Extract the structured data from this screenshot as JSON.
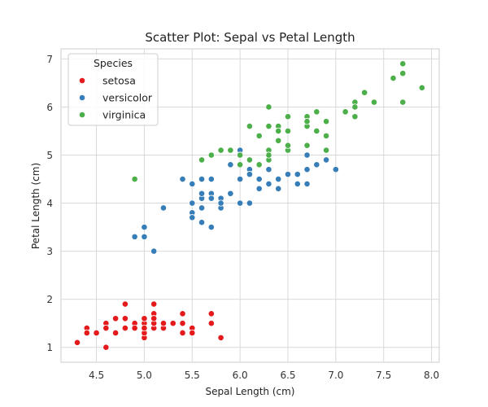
{
  "chart_data": {
    "type": "scatter",
    "title": "Scatter Plot: Sepal vs Petal Length",
    "xlabel": "Sepal Length (cm)",
    "ylabel": "Petal Length (cm)",
    "xlim": [
      4.13,
      8.08
    ],
    "ylim": [
      0.69,
      7.21
    ],
    "xticks": [
      4.5,
      5.0,
      5.5,
      6.0,
      6.5,
      7.0,
      7.5,
      8.0
    ],
    "xtick_labels": [
      "4.5",
      "5.0",
      "5.5",
      "6.0",
      "6.5",
      "7.0",
      "7.5",
      "8.0"
    ],
    "yticks": [
      1,
      2,
      3,
      4,
      5,
      6,
      7
    ],
    "ytick_labels": [
      "1",
      "2",
      "3",
      "4",
      "5",
      "6",
      "7"
    ],
    "grid": true,
    "legend_title": "Species",
    "legend_position": "top-left",
    "series": [
      {
        "name": "setosa",
        "color": "#e41a1c",
        "points": [
          [
            5.1,
            1.4
          ],
          [
            4.9,
            1.4
          ],
          [
            4.7,
            1.3
          ],
          [
            4.6,
            1.5
          ],
          [
            5.0,
            1.4
          ],
          [
            5.4,
            1.7
          ],
          [
            4.6,
            1.4
          ],
          [
            5.0,
            1.5
          ],
          [
            4.4,
            1.4
          ],
          [
            4.9,
            1.5
          ],
          [
            5.4,
            1.5
          ],
          [
            4.8,
            1.6
          ],
          [
            4.8,
            1.4
          ],
          [
            4.3,
            1.1
          ],
          [
            5.8,
            1.2
          ],
          [
            5.7,
            1.5
          ],
          [
            5.4,
            1.3
          ],
          [
            5.1,
            1.4
          ],
          [
            5.7,
            1.7
          ],
          [
            5.1,
            1.5
          ],
          [
            5.4,
            1.7
          ],
          [
            5.1,
            1.5
          ],
          [
            4.6,
            1.0
          ],
          [
            5.1,
            1.7
          ],
          [
            4.8,
            1.9
          ],
          [
            5.0,
            1.6
          ],
          [
            5.0,
            1.6
          ],
          [
            5.2,
            1.5
          ],
          [
            5.2,
            1.4
          ],
          [
            4.7,
            1.6
          ],
          [
            4.8,
            1.6
          ],
          [
            5.4,
            1.5
          ],
          [
            5.2,
            1.5
          ],
          [
            5.5,
            1.4
          ],
          [
            4.9,
            1.5
          ],
          [
            5.0,
            1.2
          ],
          [
            5.5,
            1.3
          ],
          [
            4.9,
            1.4
          ],
          [
            4.4,
            1.3
          ],
          [
            5.1,
            1.5
          ],
          [
            5.0,
            1.3
          ],
          [
            4.5,
            1.3
          ],
          [
            4.4,
            1.3
          ],
          [
            5.0,
            1.6
          ],
          [
            5.1,
            1.9
          ],
          [
            4.8,
            1.4
          ],
          [
            5.1,
            1.6
          ],
          [
            4.6,
            1.4
          ],
          [
            5.3,
            1.5
          ],
          [
            5.0,
            1.4
          ]
        ]
      },
      {
        "name": "versicolor",
        "color": "#377eb8",
        "points": [
          [
            7.0,
            4.7
          ],
          [
            6.4,
            4.5
          ],
          [
            6.9,
            4.9
          ],
          [
            5.5,
            4.0
          ],
          [
            6.5,
            4.6
          ],
          [
            5.7,
            4.5
          ],
          [
            6.3,
            4.7
          ],
          [
            4.9,
            3.3
          ],
          [
            6.6,
            4.6
          ],
          [
            5.2,
            3.9
          ],
          [
            5.0,
            3.5
          ],
          [
            5.9,
            4.2
          ],
          [
            6.0,
            4.0
          ],
          [
            6.1,
            4.7
          ],
          [
            5.6,
            3.6
          ],
          [
            6.7,
            4.4
          ],
          [
            5.6,
            4.5
          ],
          [
            5.8,
            4.1
          ],
          [
            6.2,
            4.5
          ],
          [
            5.6,
            3.9
          ],
          [
            5.9,
            4.8
          ],
          [
            6.1,
            4.0
          ],
          [
            6.3,
            4.9
          ],
          [
            6.1,
            4.7
          ],
          [
            6.4,
            4.3
          ],
          [
            6.6,
            4.4
          ],
          [
            6.8,
            4.8
          ],
          [
            6.7,
            5.0
          ],
          [
            6.0,
            4.5
          ],
          [
            5.7,
            3.5
          ],
          [
            5.5,
            3.8
          ],
          [
            5.5,
            3.7
          ],
          [
            5.8,
            3.9
          ],
          [
            6.0,
            5.1
          ],
          [
            5.4,
            4.5
          ],
          [
            6.0,
            4.5
          ],
          [
            6.7,
            4.7
          ],
          [
            6.3,
            4.4
          ],
          [
            5.6,
            4.1
          ],
          [
            5.5,
            4.0
          ],
          [
            5.5,
            4.4
          ],
          [
            6.1,
            4.6
          ],
          [
            5.8,
            4.0
          ],
          [
            5.0,
            3.3
          ],
          [
            5.6,
            4.2
          ],
          [
            5.7,
            4.2
          ],
          [
            5.7,
            4.2
          ],
          [
            6.2,
            4.3
          ],
          [
            5.1,
            3.0
          ],
          [
            5.7,
            4.1
          ]
        ]
      },
      {
        "name": "virginica",
        "color": "#4daf4a",
        "points": [
          [
            6.3,
            6.0
          ],
          [
            5.8,
            5.1
          ],
          [
            7.1,
            5.9
          ],
          [
            6.3,
            5.6
          ],
          [
            6.5,
            5.8
          ],
          [
            7.6,
            6.6
          ],
          [
            4.9,
            4.5
          ],
          [
            7.3,
            6.3
          ],
          [
            6.7,
            5.8
          ],
          [
            7.2,
            6.1
          ],
          [
            6.5,
            5.1
          ],
          [
            6.4,
            5.3
          ],
          [
            6.8,
            5.5
          ],
          [
            5.7,
            5.0
          ],
          [
            5.8,
            5.1
          ],
          [
            6.4,
            5.3
          ],
          [
            6.5,
            5.5
          ],
          [
            7.7,
            6.7
          ],
          [
            7.7,
            6.9
          ],
          [
            6.0,
            5.0
          ],
          [
            6.9,
            5.7
          ],
          [
            5.6,
            4.9
          ],
          [
            7.7,
            6.7
          ],
          [
            6.3,
            4.9
          ],
          [
            6.7,
            5.7
          ],
          [
            7.2,
            6.0
          ],
          [
            6.2,
            4.8
          ],
          [
            6.1,
            4.9
          ],
          [
            6.4,
            5.6
          ],
          [
            7.2,
            5.8
          ],
          [
            7.4,
            6.1
          ],
          [
            7.9,
            6.4
          ],
          [
            6.4,
            5.6
          ],
          [
            6.3,
            5.1
          ],
          [
            6.1,
            5.6
          ],
          [
            7.7,
            6.1
          ],
          [
            6.3,
            5.6
          ],
          [
            6.4,
            5.5
          ],
          [
            6.0,
            4.8
          ],
          [
            6.9,
            5.4
          ],
          [
            6.7,
            5.6
          ],
          [
            6.9,
            5.1
          ],
          [
            5.8,
            5.1
          ],
          [
            6.8,
            5.9
          ],
          [
            6.7,
            5.7
          ],
          [
            6.7,
            5.2
          ],
          [
            6.3,
            5.0
          ],
          [
            6.5,
            5.2
          ],
          [
            6.2,
            5.4
          ],
          [
            5.9,
            5.1
          ]
        ]
      }
    ]
  }
}
